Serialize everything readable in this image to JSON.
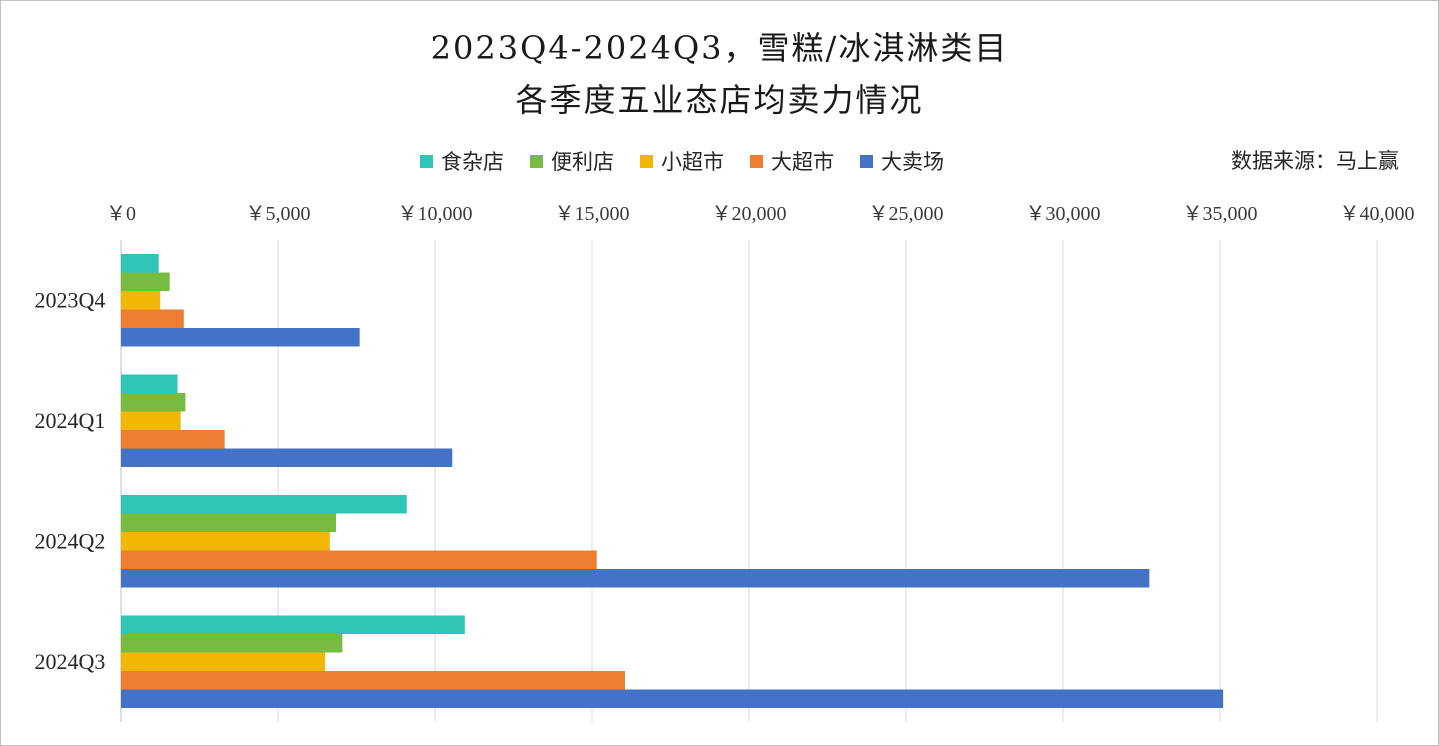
{
  "title_lines": [
    "2023Q4-2024Q3，雪糕/冰淇淋类目",
    "各季度五业态店均卖力情况"
  ],
  "source": "数据来源：马上赢",
  "chart_data": {
    "type": "bar",
    "orientation": "horizontal",
    "title": "2023Q4-2024Q3，雪糕/冰淇淋类目 各季度五业态店均卖力情况",
    "categories": [
      "2023Q4",
      "2024Q1",
      "2024Q2",
      "2024Q3"
    ],
    "series": [
      {
        "name": "食杂店",
        "color": "#2ec4b6",
        "values": [
          1200,
          1800,
          9100,
          10950
        ]
      },
      {
        "name": "便利店",
        "color": "#77bb41",
        "values": [
          1550,
          2050,
          6850,
          7050
        ]
      },
      {
        "name": "小超市",
        "color": "#f2b705",
        "values": [
          1250,
          1900,
          6650,
          6500
        ]
      },
      {
        "name": "大超市",
        "color": "#ed7d31",
        "values": [
          2000,
          3300,
          15150,
          16050
        ]
      },
      {
        "name": "大卖场",
        "color": "#4472c4",
        "values": [
          7600,
          10550,
          32750,
          35100
        ]
      }
    ],
    "xlim": [
      0,
      40000
    ],
    "xticks": [
      "￥0",
      "￥5,000",
      "￥10,000",
      "￥15,000",
      "￥20,000",
      "￥25,000",
      "￥30,000",
      "￥35,000",
      "￥40,000"
    ],
    "xlabel": "",
    "ylabel": "",
    "axis_position": "top",
    "grid": true,
    "legend_position": "top"
  }
}
